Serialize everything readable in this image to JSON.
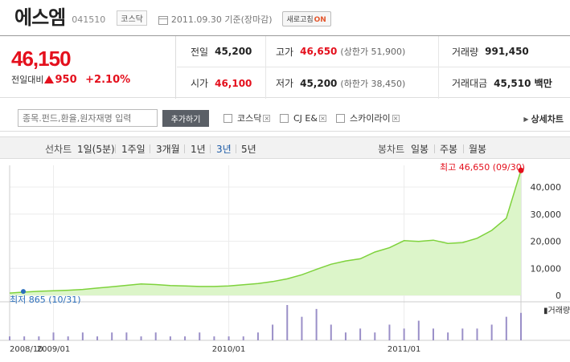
{
  "header": {
    "name": "에스엠",
    "code": "041510",
    "market": "코스닥",
    "date": "2011.09.30 기준(장마감)",
    "refresh_label": "새로고침",
    "refresh_state": "ON"
  },
  "quote": {
    "price": "46,150",
    "change_label": "전일대비",
    "change": "950",
    "change_pct": "+2.10%",
    "stats": {
      "prev_close": {
        "label": "전일",
        "value": "45,200"
      },
      "open": {
        "label": "시가",
        "value": "46,100"
      },
      "high": {
        "label": "고가",
        "value": "46,650",
        "limit": "(상한가 51,900)"
      },
      "low": {
        "label": "저가",
        "value": "45,200",
        "limit": "(하한가 38,450)"
      },
      "volume": {
        "label": "거래량",
        "value": "991,450"
      },
      "amount": {
        "label": "거래대금",
        "value": "45,510 백만"
      }
    }
  },
  "search": {
    "placeholder": "종목.펀드,환율,원자재명 입력",
    "add_button": "추가하기",
    "compare": [
      "코스닥",
      "CJ E&",
      "스카이라이"
    ],
    "detail_link": "상세차트"
  },
  "tabs": {
    "line_label": "선차트",
    "line_periods": [
      "1일(5분)",
      "1주일",
      "3개월",
      "1년",
      "3년",
      "5년"
    ],
    "active_period": "3년",
    "candle_label": "봉차트",
    "candle_periods": [
      "일봉",
      "주봉",
      "월봉"
    ]
  },
  "colors": {
    "accent_red": "#e4101d",
    "active_tab": "#1b5aa6",
    "line_green": "#7ed23c",
    "area_fill": "#dcf5c9",
    "volume_bar": "#9a8fc8",
    "low_marker": "#2a6ebb",
    "high_marker": "#e4101d"
  },
  "chart_data": {
    "type": "area",
    "x": [
      "2008/10",
      "2008/11",
      "2008/12",
      "2009/01",
      "2009/02",
      "2009/03",
      "2009/04",
      "2009/05",
      "2009/06",
      "2009/07",
      "2009/08",
      "2009/09",
      "2009/10",
      "2009/11",
      "2009/12",
      "2010/01",
      "2010/02",
      "2010/03",
      "2010/04",
      "2010/05",
      "2010/06",
      "2010/07",
      "2010/08",
      "2010/09",
      "2010/10",
      "2010/11",
      "2010/12",
      "2011/01",
      "2011/02",
      "2011/03",
      "2011/04",
      "2011/05",
      "2011/06",
      "2011/07",
      "2011/08",
      "2011/09"
    ],
    "values": [
      865,
      1200,
      1500,
      1700,
      1900,
      2200,
      2700,
      3200,
      3700,
      4200,
      4000,
      3600,
      3500,
      3300,
      3300,
      3500,
      3900,
      4400,
      5100,
      6100,
      7600,
      9600,
      11500,
      12700,
      13500,
      16000,
      17600,
      20200,
      19900,
      20400,
      19200,
      19500,
      21100,
      24000,
      28500,
      46150
    ],
    "volume": [
      1,
      1,
      1,
      2,
      1,
      2,
      1,
      2,
      2,
      1,
      2,
      1,
      1,
      2,
      1,
      1,
      1,
      2,
      4,
      9,
      6,
      8,
      4,
      2,
      3,
      2,
      4,
      3,
      5,
      3,
      2,
      3,
      3,
      4,
      6,
      7
    ],
    "x_ticks": [
      "2008/10",
      "2009/01",
      "2010/01",
      "2011/01"
    ],
    "y_ticks": [
      "40,000",
      "30,000",
      "20,000",
      "10,000",
      "0"
    ],
    "ylim": [
      0,
      48000
    ],
    "volume_label": "거래량",
    "high_annotation": {
      "label": "최고",
      "value": "46,650",
      "date": "(09/30)"
    },
    "low_annotation": {
      "label": "최저",
      "value": "865",
      "date": "(10/31)"
    },
    "grid": true
  }
}
